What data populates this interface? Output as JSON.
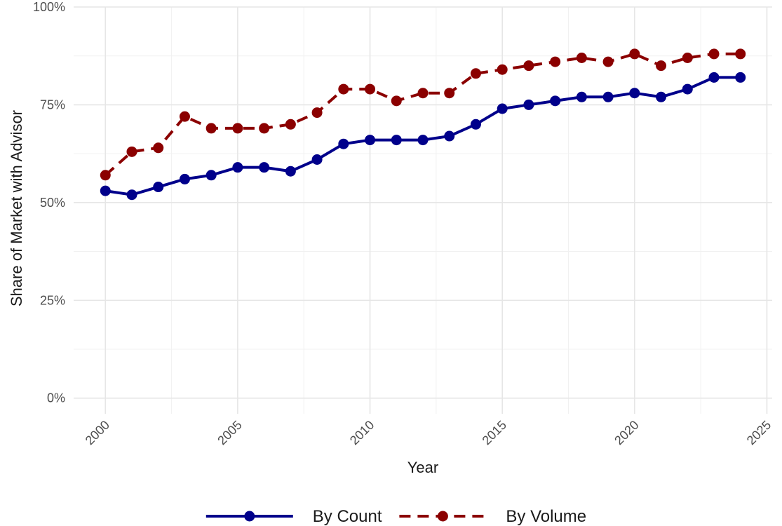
{
  "chart_data": {
    "type": "line",
    "title": "",
    "xlabel": "Year",
    "ylabel": "Share of Market with Advisor",
    "xlim": [
      1998.8,
      2025.2
    ],
    "ylim": [
      -0.04,
      1.0
    ],
    "x_ticks": [
      2000,
      2005,
      2010,
      2015,
      2020,
      2025
    ],
    "x_tick_labels": [
      "2000",
      "2005",
      "2010",
      "2015",
      "2020",
      "2025"
    ],
    "y_ticks": [
      0,
      0.25,
      0.5,
      0.75,
      1.0
    ],
    "y_tick_labels": [
      "0%",
      "25%",
      "50%",
      "75%",
      "100%"
    ],
    "grid": true,
    "legend_position": "bottom",
    "x": [
      2000,
      2001,
      2002,
      2003,
      2004,
      2005,
      2006,
      2007,
      2008,
      2009,
      2010,
      2011,
      2012,
      2013,
      2014,
      2015,
      2016,
      2017,
      2018,
      2019,
      2020,
      2021,
      2022,
      2023,
      2024
    ],
    "series": [
      {
        "name": "By Count",
        "color": "#00008b",
        "line_style": "solid",
        "values": [
          0.53,
          0.52,
          0.54,
          0.56,
          0.57,
          0.59,
          0.59,
          0.58,
          0.61,
          0.65,
          0.66,
          0.66,
          0.66,
          0.67,
          0.7,
          0.74,
          0.75,
          0.76,
          0.77,
          0.77,
          0.78,
          0.77,
          0.79,
          0.82,
          0.82
        ]
      },
      {
        "name": "By Volume",
        "color": "#8b0000",
        "line_style": "dashed",
        "values": [
          0.57,
          0.63,
          0.64,
          0.72,
          0.69,
          0.69,
          0.69,
          0.7,
          0.73,
          0.79,
          0.79,
          0.76,
          0.78,
          0.78,
          0.83,
          0.84,
          0.85,
          0.86,
          0.87,
          0.86,
          0.88,
          0.85,
          0.87,
          0.88,
          0.88
        ]
      }
    ]
  }
}
